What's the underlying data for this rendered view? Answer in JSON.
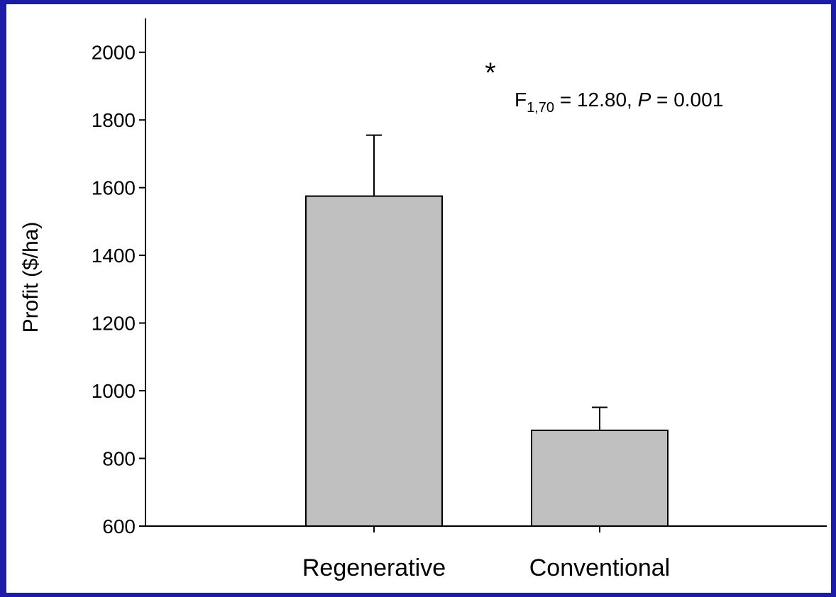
{
  "colors": {
    "frame": "#1c1ca8",
    "plot_background": "#ffffff",
    "bar_fill": "#c0c0c0",
    "bar_stroke": "#000000"
  },
  "chart_data": {
    "type": "bar",
    "categories": [
      "Regenerative",
      "Conventional"
    ],
    "values": [
      1575,
      883
    ],
    "error_bars": [
      180,
      68
    ],
    "ylabel": "Profit ($/ha)",
    "xlabel": "",
    "ylim": [
      600,
      2100
    ],
    "yticks": [
      600,
      800,
      1000,
      1200,
      1400,
      1600,
      1800,
      2000
    ],
    "grid": false,
    "annotations": {
      "significance_marker": "*",
      "stat_prefix": "F",
      "stat_subscript": "1,70",
      "stat_value": " = 12.80, ",
      "p_label": "P",
      "p_value": " = 0.001"
    }
  }
}
